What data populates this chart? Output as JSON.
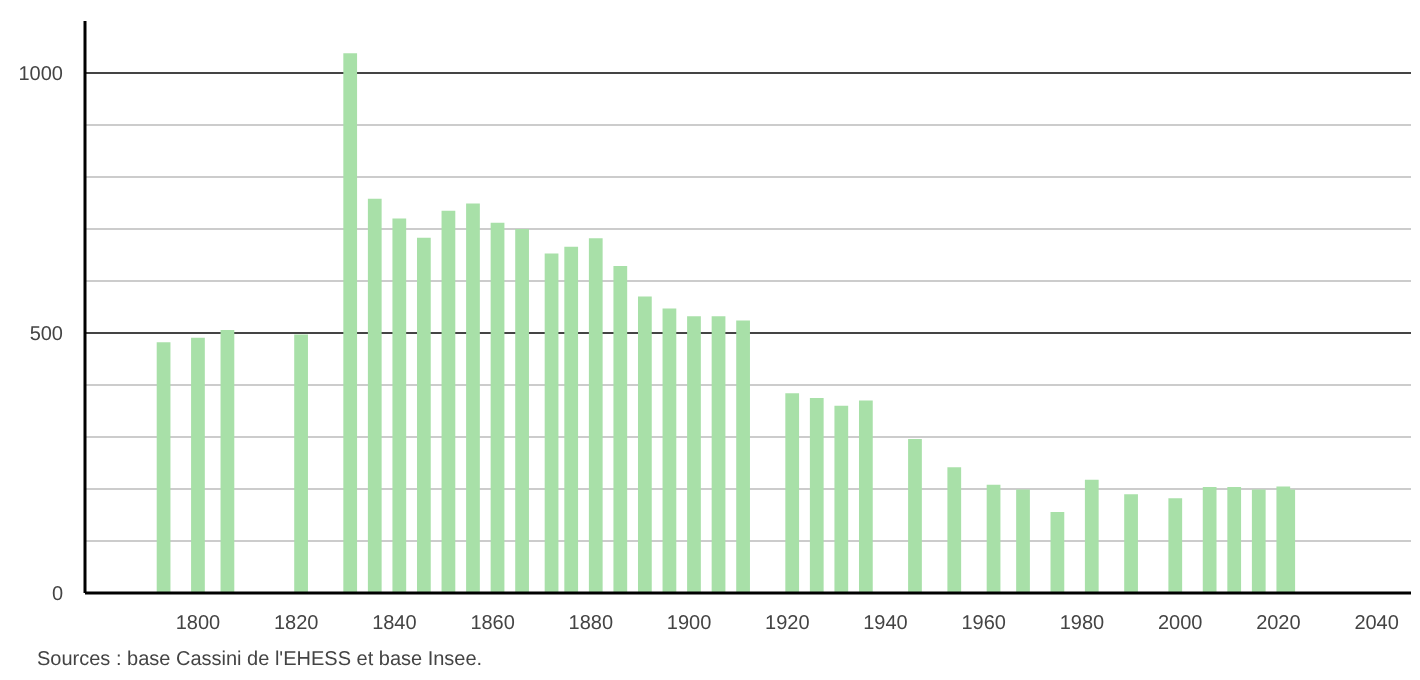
{
  "chart_data": {
    "type": "bar",
    "color": "#a8e0a8",
    "x": [
      1793,
      1800,
      1806,
      1821,
      1831,
      1836,
      1841,
      1846,
      1851,
      1856,
      1861,
      1866,
      1872,
      1876,
      1881,
      1886,
      1891,
      1896,
      1901,
      1906,
      1911,
      1921,
      1926,
      1931,
      1936,
      1946,
      1954,
      1962,
      1968,
      1975,
      1982,
      1990,
      1999,
      2006,
      2011,
      2016,
      2021,
      2022
    ],
    "values": [
      482,
      491,
      506,
      497,
      1038,
      758,
      720,
      683,
      735,
      749,
      712,
      700,
      653,
      666,
      682,
      629,
      570,
      547,
      532,
      532,
      524,
      384,
      375,
      360,
      370,
      296,
      242,
      208,
      199,
      156,
      218,
      190,
      182,
      204,
      204,
      199,
      205,
      199
    ],
    "xlim": [
      1777,
      2047
    ],
    "ylim": [
      0,
      1100
    ],
    "xticks": [
      1800,
      1820,
      1840,
      1860,
      1880,
      1900,
      1920,
      1940,
      1960,
      1980,
      2000,
      2020,
      2040
    ],
    "yticks": [
      0,
      {
        "value": 100,
        "label": null
      },
      {
        "value": 200,
        "label": null
      },
      {
        "value": 300,
        "label": null
      },
      {
        "value": 400,
        "label": null
      },
      500,
      {
        "value": 600,
        "label": null
      },
      {
        "value": 700,
        "label": null
      },
      {
        "value": 800,
        "label": null
      },
      {
        "value": 900,
        "label": null
      },
      1000
    ],
    "grid": "y",
    "annotations": [
      "Sources : base Cassini de l'EHESS et base Insee."
    ]
  }
}
